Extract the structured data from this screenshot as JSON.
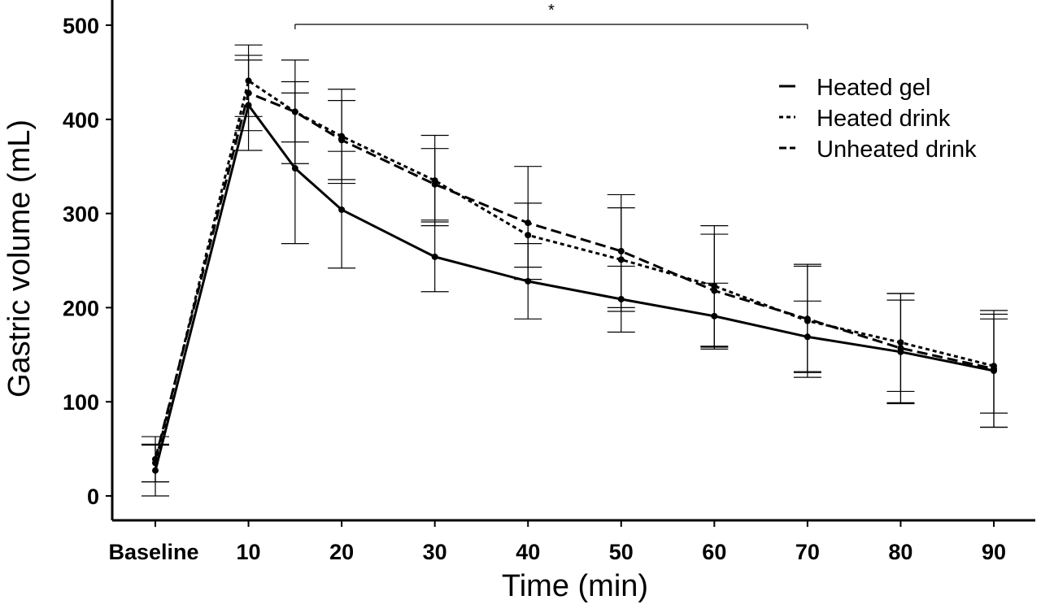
{
  "chart_data": {
    "type": "line",
    "xlabel": "Time (min)",
    "ylabel": "Gastric volume (mL)",
    "x_categories": [
      "Baseline",
      "10",
      "20",
      "30",
      "40",
      "50",
      "60",
      "70",
      "80",
      "90"
    ],
    "x_values": [
      0,
      10,
      20,
      30,
      40,
      50,
      60,
      70,
      80,
      90
    ],
    "ylim": [
      0,
      500
    ],
    "yticks": [
      0,
      100,
      200,
      300,
      400,
      500
    ],
    "ytick_labels": [
      "0",
      "100",
      "200",
      "300",
      "400",
      "500"
    ],
    "xlim": [
      -2,
      94
    ],
    "grid": false,
    "legend_position": "top-right",
    "significance": {
      "x_start": 15,
      "x_end": 70,
      "label": "*"
    },
    "series": [
      {
        "name": "Heated gel",
        "style": "solid",
        "x": [
          0,
          10,
          15,
          20,
          30,
          40,
          50,
          60,
          70,
          80,
          90
        ],
        "y": [
          27,
          415,
          348,
          304,
          254,
          228,
          209,
          191,
          169,
          153,
          133
        ],
        "err": [
          27,
          48,
          80,
          62,
          37,
          40,
          35,
          35,
          38,
          55,
          60
        ]
      },
      {
        "name": "Heated drink",
        "style": "dotted",
        "x": [
          0,
          10,
          15,
          20,
          30,
          40,
          50,
          60,
          70,
          80,
          90
        ],
        "y": [
          35,
          441,
          408,
          382,
          335,
          277,
          251,
          223,
          186,
          163,
          138
        ],
        "err": [
          20,
          38,
          32,
          50,
          48,
          34,
          55,
          64,
          60,
          52,
          50
        ]
      },
      {
        "name": "Unheated drink",
        "style": "dashed",
        "x": [
          0,
          10,
          15,
          20,
          30,
          40,
          50,
          60,
          70,
          80,
          90
        ],
        "y": [
          39,
          428,
          408,
          378,
          331,
          290,
          260,
          218,
          188,
          157,
          135
        ],
        "err": [
          24,
          40,
          55,
          42,
          38,
          60,
          60,
          60,
          56,
          58,
          62
        ]
      }
    ]
  },
  "colors": {
    "ink": "#000000",
    "background": "#ffffff"
  }
}
